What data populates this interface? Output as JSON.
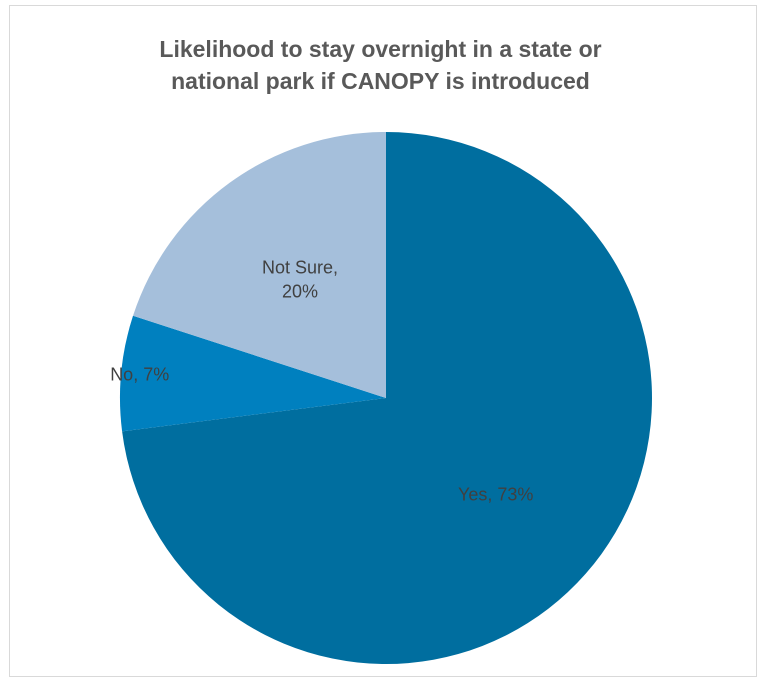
{
  "chart_data": {
    "type": "pie",
    "title_lines": [
      "Likelihood to stay overnight in a state or",
      "national park if CANOPY is introduced"
    ],
    "slices": [
      {
        "name": "Yes",
        "value": 73,
        "label_lines": [
          "Yes, 73%"
        ],
        "color": "#006e9f",
        "label_color": "#404040"
      },
      {
        "name": "No",
        "value": 7,
        "label_lines": [
          "No, 7%"
        ],
        "color": "#0080bf",
        "label_color": "#404040"
      },
      {
        "name": "Not Sure",
        "value": 20,
        "label_lines": [
          "Not Sure,",
          "20%"
        ],
        "color": "#a5bfdb",
        "label_color": "#404040"
      }
    ],
    "start_angle_deg": 0,
    "direction": "clockwise",
    "legend": "none"
  }
}
